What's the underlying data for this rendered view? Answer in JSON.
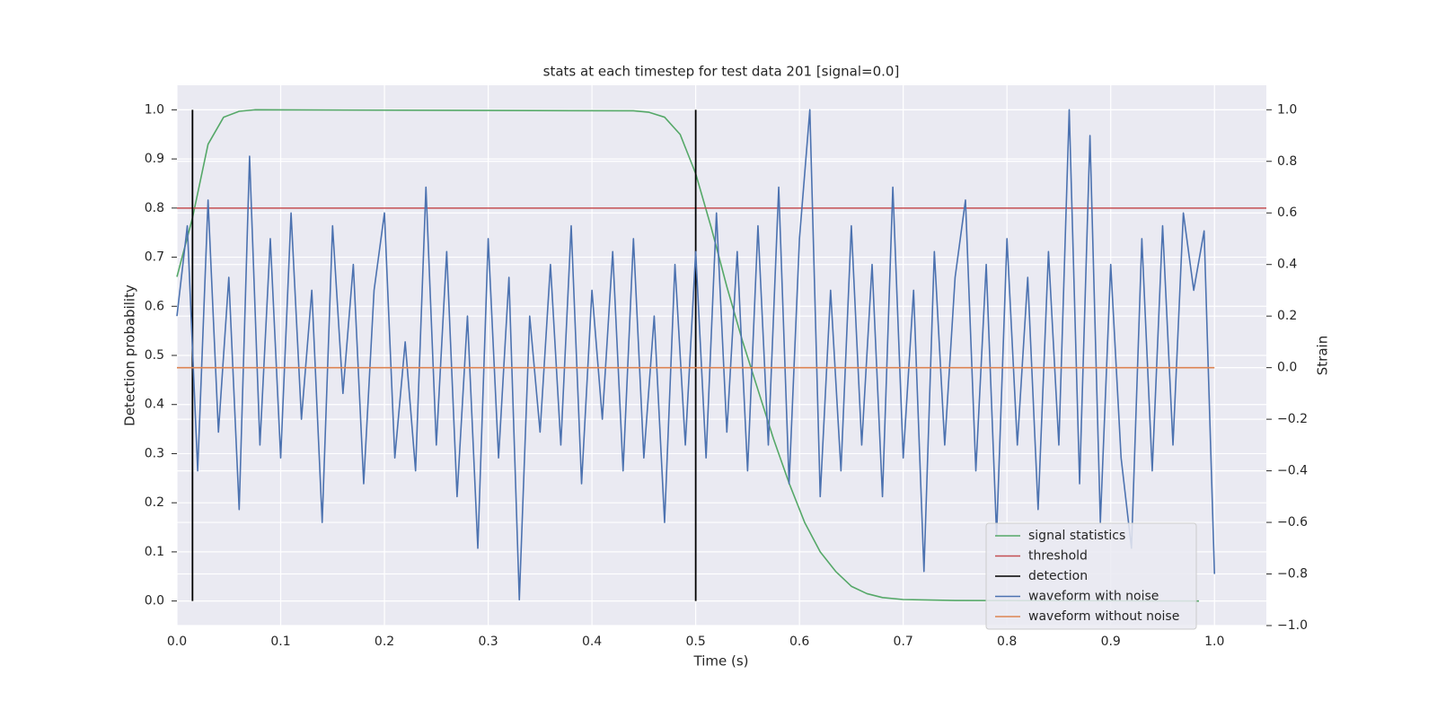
{
  "chart_data": {
    "type": "line",
    "title": "stats at each timestep for test data 201 [signal=0.0]",
    "x_label": "Time (s)",
    "y_label": "Detection probability",
    "y2_label": "Strain",
    "xlim": [
      0,
      1.05
    ],
    "ylim": [
      -0.05,
      1.05
    ],
    "y2lim": [
      -1.0,
      1.095
    ],
    "xticks": [
      {
        "value": 0,
        "label": "0.0"
      },
      0.1,
      0.2,
      0.3,
      0.4,
      0.5,
      0.6,
      0.7,
      0.8,
      0.9,
      {
        "value": 1,
        "label": "1.0"
      }
    ],
    "yticks": [
      {
        "value": 0,
        "label": "0.0"
      },
      0.1,
      0.2,
      0.3,
      0.4,
      0.5,
      0.6,
      0.7,
      0.8,
      0.9,
      {
        "value": 1,
        "label": "1.0"
      }
    ],
    "y2ticks": [
      {
        "value": -1,
        "label": "−1.0"
      },
      {
        "value": -0.8,
        "label": "−0.8"
      },
      {
        "value": -0.6,
        "label": "−0.6"
      },
      {
        "value": -0.4,
        "label": "−0.4"
      },
      {
        "value": -0.2,
        "label": "−0.2"
      },
      {
        "value": 0,
        "label": "0.0"
      },
      0.2,
      0.4,
      0.6,
      0.8,
      {
        "value": 1,
        "label": "1.0"
      }
    ],
    "grid": true,
    "legend": "lower right",
    "series": [
      {
        "name": "signal statistics",
        "color": "#55a868",
        "kind": "line",
        "x": [
          0,
          0.015,
          0.03,
          0.045,
          0.06,
          0.075,
          0.44,
          0.455,
          0.47,
          0.485,
          0.5,
          0.515,
          0.53,
          0.545,
          0.56,
          0.575,
          0.59,
          0.605,
          0.62,
          0.635,
          0.65,
          0.665,
          0.68,
          0.7,
          0.75,
          0.985
        ],
        "values": [
          0.66,
          0.78,
          0.93,
          0.985,
          0.997,
          1.0,
          0.998,
          0.995,
          0.985,
          0.95,
          0.87,
          0.76,
          0.64,
          0.53,
          0.43,
          0.33,
          0.24,
          0.16,
          0.1,
          0.06,
          0.03,
          0.015,
          0.007,
          0.003,
          0.001,
          0.0
        ]
      },
      {
        "name": "threshold",
        "color": "#c44e52",
        "kind": "hline",
        "value": 0.8
      },
      {
        "name": "detection",
        "color": "#000000",
        "kind": "vlines",
        "x": [
          0.015,
          0.5
        ],
        "ymin": 0,
        "ymax": 1
      },
      {
        "name": "waveform with noise",
        "color": "#4c72b0",
        "kind": "line",
        "axis": "y2",
        "x": [
          0,
          0.01,
          0.02,
          0.03,
          0.04,
          0.05,
          0.06,
          0.07,
          0.08,
          0.09,
          0.1,
          0.11,
          0.12,
          0.13,
          0.14,
          0.15,
          0.16,
          0.17,
          0.18,
          0.19,
          0.2,
          0.21,
          0.22,
          0.23,
          0.24,
          0.25,
          0.26,
          0.27,
          0.28,
          0.29,
          0.3,
          0.31,
          0.32,
          0.33,
          0.34,
          0.35,
          0.36,
          0.37,
          0.38,
          0.39,
          0.4,
          0.41,
          0.42,
          0.43,
          0.44,
          0.45,
          0.46,
          0.47,
          0.48,
          0.49,
          0.5,
          0.51,
          0.52,
          0.53,
          0.54,
          0.55,
          0.56,
          0.57,
          0.58,
          0.59,
          0.6,
          0.61,
          0.62,
          0.63,
          0.64,
          0.65,
          0.66,
          0.67,
          0.68,
          0.69,
          0.7,
          0.71,
          0.72,
          0.73,
          0.74,
          0.75,
          0.76,
          0.77,
          0.78,
          0.79,
          0.8,
          0.81,
          0.82,
          0.83,
          0.84,
          0.85,
          0.86,
          0.87,
          0.88,
          0.89,
          0.9,
          0.91,
          0.92,
          0.93,
          0.94,
          0.95,
          0.96,
          0.97,
          0.98,
          0.99,
          1
        ],
        "values": [
          0.2,
          0.55,
          -0.4,
          0.65,
          -0.25,
          0.35,
          -0.55,
          0.82,
          -0.3,
          0.5,
          -0.35,
          0.6,
          -0.2,
          0.3,
          -0.6,
          0.55,
          -0.1,
          0.4,
          -0.45,
          0.3,
          0.6,
          -0.35,
          0.1,
          -0.4,
          0.7,
          -0.3,
          0.45,
          -0.5,
          0.2,
          -0.7,
          0.5,
          -0.35,
          0.35,
          -0.9,
          0.2,
          -0.25,
          0.4,
          -0.3,
          0.55,
          -0.45,
          0.3,
          -0.2,
          0.45,
          -0.4,
          0.5,
          -0.35,
          0.2,
          -0.6,
          0.4,
          -0.3,
          0.45,
          -0.35,
          0.6,
          -0.25,
          0.45,
          -0.4,
          0.55,
          -0.3,
          0.7,
          -0.45,
          0.5,
          1.0,
          -0.5,
          0.3,
          -0.4,
          0.55,
          -0.3,
          0.4,
          -0.5,
          0.7,
          -0.35,
          0.3,
          -0.79,
          0.45,
          -0.3,
          0.35,
          0.65,
          -0.4,
          0.4,
          -0.65,
          0.5,
          -0.3,
          0.35,
          -0.55,
          0.45,
          -0.3,
          1.0,
          -0.45,
          0.9,
          -0.6,
          0.4,
          -0.35,
          -0.7,
          0.5,
          -0.4,
          0.55,
          -0.3,
          0.6,
          0.3,
          0.53,
          -0.8
        ]
      },
      {
        "name": "waveform without noise",
        "color": "#dd8452",
        "kind": "line",
        "axis": "y2",
        "x": [
          0,
          1
        ],
        "values": [
          0,
          0
        ]
      }
    ]
  }
}
